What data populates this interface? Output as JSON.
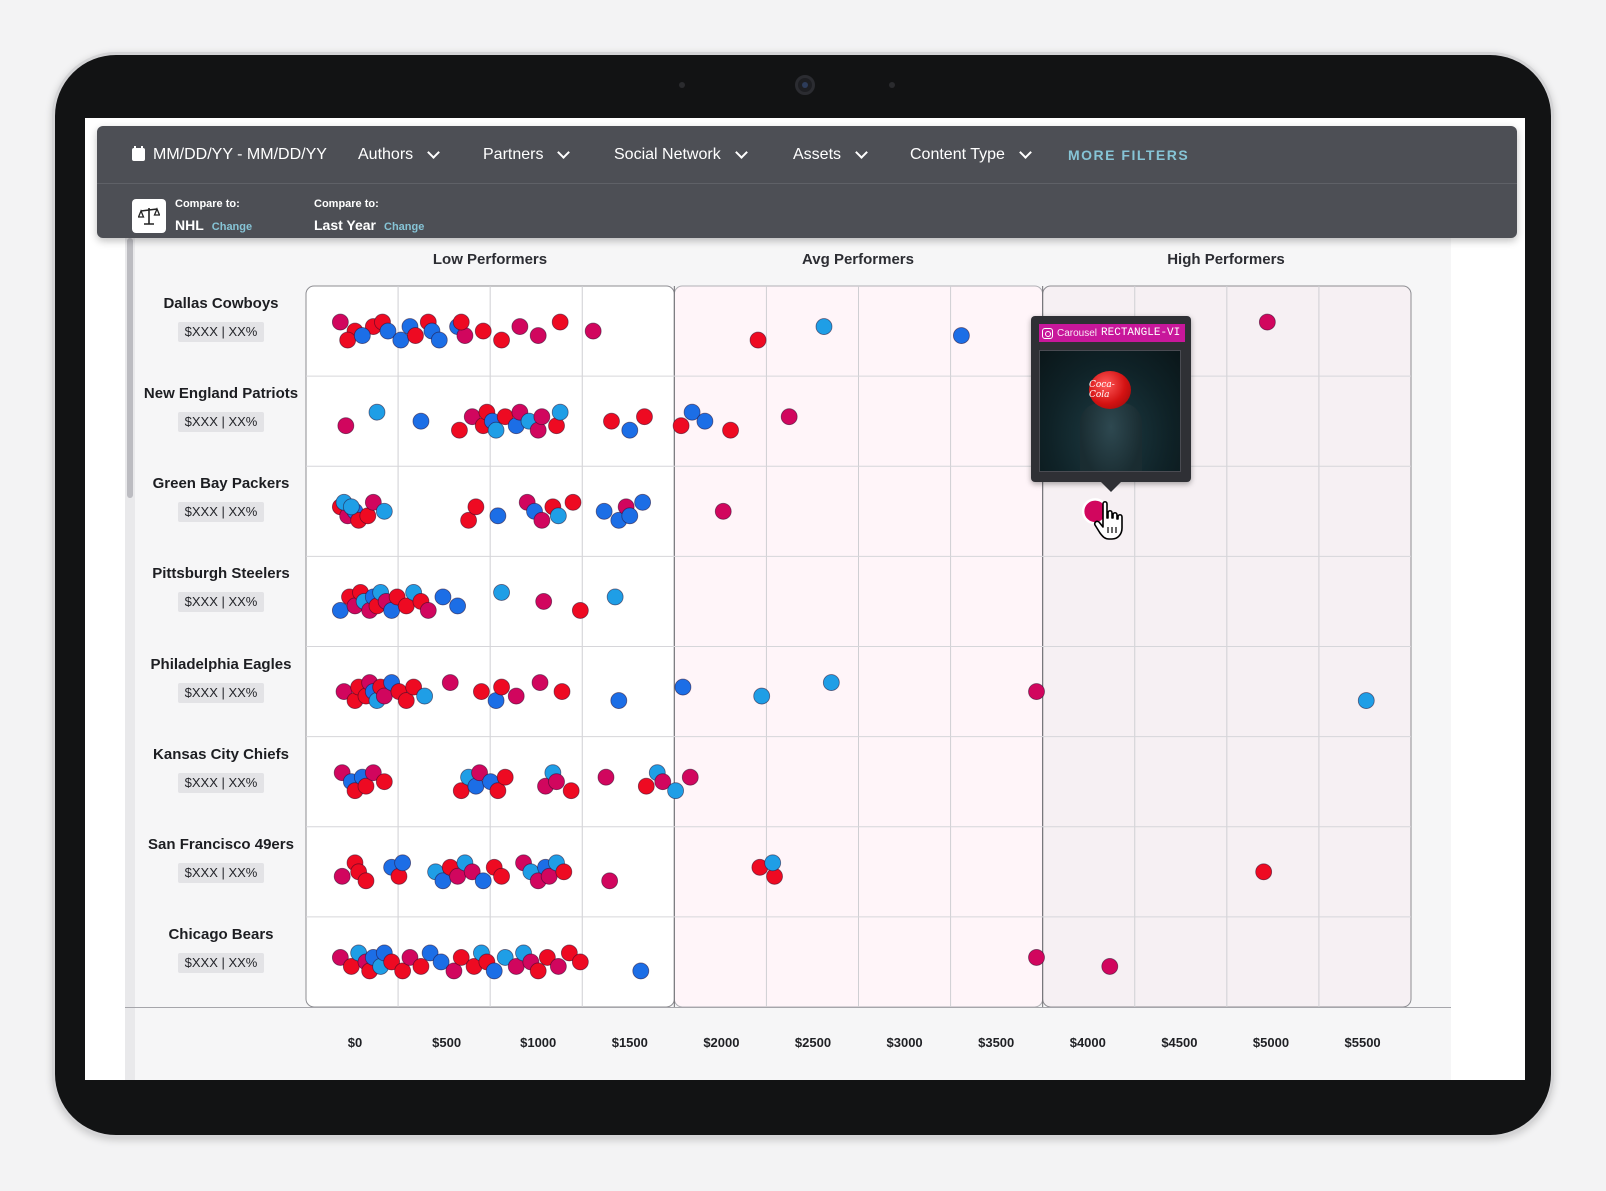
{
  "filters": {
    "date_range": "MM/DD/YY - MM/DD/YY",
    "authors": "Authors",
    "partners": "Partners",
    "social_network": "Social Network",
    "assets": "Assets",
    "content_type": "Content Type",
    "more_filters": "MORE FILTERS"
  },
  "compare": {
    "first": {
      "label": "Compare to:",
      "value": "NHL",
      "change": "Change"
    },
    "second": {
      "label": "Compare to:",
      "value": "Last Year",
      "change": "Change"
    }
  },
  "tooltip": {
    "type": "Carousel",
    "name": "RECTANGLE-VI",
    "image_text": "Coca-Cola",
    "icon": "instagram-icon"
  },
  "colors": {
    "red": "#ee0a22",
    "magenta": "#d1065e",
    "blue": "#1c6ee6",
    "light_blue": "#1f9ee6",
    "accent": "#86c4d6"
  },
  "chart_data": {
    "type": "scatter",
    "groups": [
      "Low Performers",
      "Avg Performers",
      "High Performers"
    ],
    "x_ticks": [
      "$0",
      "$500",
      "$1000",
      "$1500",
      "$2000",
      "$2500",
      "$3000",
      "$3500",
      "$4000",
      "$4500",
      "$5000",
      "$5500"
    ],
    "xlim": [
      -250,
      5750
    ],
    "teams": [
      {
        "name": "Dallas Cowboys",
        "badge": "$XXX | XX%",
        "points": [
          [
            -80,
            "m"
          ],
          [
            0,
            "r"
          ],
          [
            -40,
            "r"
          ],
          [
            100,
            "r"
          ],
          [
            40,
            "b"
          ],
          [
            150,
            "r"
          ],
          [
            180,
            "b"
          ],
          [
            250,
            "b"
          ],
          [
            300,
            "b"
          ],
          [
            330,
            "r"
          ],
          [
            400,
            "r"
          ],
          [
            420,
            "b"
          ],
          [
            460,
            "b"
          ],
          [
            560,
            "b"
          ],
          [
            600,
            "m"
          ],
          [
            580,
            "r"
          ],
          [
            700,
            "r"
          ],
          [
            800,
            "r"
          ],
          [
            900,
            "m"
          ],
          [
            1000,
            "m"
          ],
          [
            1120,
            "r"
          ],
          [
            1300,
            "m"
          ],
          [
            2200,
            "r"
          ],
          [
            2560,
            "lb"
          ],
          [
            3310,
            "b"
          ],
          [
            4980,
            "m"
          ]
        ]
      },
      {
        "name": "New England Patriots",
        "badge": "$XXX | XX%",
        "points": [
          [
            -50,
            "m"
          ],
          [
            120,
            "lb"
          ],
          [
            360,
            "b"
          ],
          [
            570,
            "r"
          ],
          [
            640,
            "m"
          ],
          [
            700,
            "r"
          ],
          [
            720,
            "r"
          ],
          [
            750,
            "b"
          ],
          [
            770,
            "lb"
          ],
          [
            820,
            "r"
          ],
          [
            880,
            "b"
          ],
          [
            900,
            "m"
          ],
          [
            950,
            "lb"
          ],
          [
            1000,
            "m"
          ],
          [
            1020,
            "m"
          ],
          [
            1100,
            "r"
          ],
          [
            1120,
            "lb"
          ],
          [
            1400,
            "r"
          ],
          [
            1500,
            "b"
          ],
          [
            1580,
            "r"
          ],
          [
            1780,
            "r"
          ],
          [
            1840,
            "b"
          ],
          [
            1910,
            "b"
          ],
          [
            2050,
            "r"
          ],
          [
            2370,
            "m"
          ]
        ]
      },
      {
        "name": "Green Bay Packers",
        "badge": "$XXX | XX%",
        "points": [
          [
            -80,
            "r"
          ],
          [
            -40,
            "m"
          ],
          [
            -60,
            "lb"
          ],
          [
            0,
            "b"
          ],
          [
            20,
            "r"
          ],
          [
            -20,
            "lb"
          ],
          [
            70,
            "r"
          ],
          [
            100,
            "m"
          ],
          [
            160,
            "lb"
          ],
          [
            620,
            "r"
          ],
          [
            660,
            "r"
          ],
          [
            780,
            "b"
          ],
          [
            940,
            "m"
          ],
          [
            980,
            "b"
          ],
          [
            1020,
            "m"
          ],
          [
            1080,
            "r"
          ],
          [
            1110,
            "lb"
          ],
          [
            1190,
            "r"
          ],
          [
            1360,
            "b"
          ],
          [
            1440,
            "b"
          ],
          [
            1480,
            "m"
          ],
          [
            1500,
            "b"
          ],
          [
            1570,
            "b"
          ],
          [
            2010,
            "m"
          ],
          [
            4040,
            "m"
          ]
        ]
      },
      {
        "name": "Pittsburgh Steelers",
        "badge": "$XXX | XX%",
        "points": [
          [
            -80,
            "b"
          ],
          [
            -30,
            "r"
          ],
          [
            0,
            "m"
          ],
          [
            30,
            "r"
          ],
          [
            50,
            "lb"
          ],
          [
            80,
            "m"
          ],
          [
            100,
            "b"
          ],
          [
            120,
            "r"
          ],
          [
            140,
            "lb"
          ],
          [
            170,
            "m"
          ],
          [
            200,
            "b"
          ],
          [
            230,
            "r"
          ],
          [
            280,
            "r"
          ],
          [
            320,
            "lb"
          ],
          [
            360,
            "r"
          ],
          [
            400,
            "m"
          ],
          [
            480,
            "b"
          ],
          [
            560,
            "b"
          ],
          [
            800,
            "lb"
          ],
          [
            1030,
            "m"
          ],
          [
            1230,
            "r"
          ],
          [
            1420,
            "lb"
          ]
        ]
      },
      {
        "name": "Philadelphia Eagles",
        "badge": "$XXX | XX%",
        "points": [
          [
            -60,
            "m"
          ],
          [
            0,
            "r"
          ],
          [
            20,
            "r"
          ],
          [
            60,
            "r"
          ],
          [
            80,
            "m"
          ],
          [
            100,
            "b"
          ],
          [
            120,
            "lb"
          ],
          [
            140,
            "r"
          ],
          [
            160,
            "m"
          ],
          [
            200,
            "b"
          ],
          [
            240,
            "r"
          ],
          [
            280,
            "r"
          ],
          [
            320,
            "r"
          ],
          [
            380,
            "lb"
          ],
          [
            520,
            "m"
          ],
          [
            690,
            "r"
          ],
          [
            770,
            "b"
          ],
          [
            800,
            "r"
          ],
          [
            880,
            "m"
          ],
          [
            1010,
            "m"
          ],
          [
            1130,
            "r"
          ],
          [
            1440,
            "b"
          ],
          [
            1790,
            "b"
          ],
          [
            2220,
            "lb"
          ],
          [
            2600,
            "lb"
          ],
          [
            3720,
            "m"
          ],
          [
            5520,
            "lb"
          ]
        ]
      },
      {
        "name": "Kansas City Chiefs",
        "badge": "$XXX | XX%",
        "points": [
          [
            -70,
            "m"
          ],
          [
            -20,
            "b"
          ],
          [
            0,
            "r"
          ],
          [
            40,
            "b"
          ],
          [
            60,
            "r"
          ],
          [
            100,
            "m"
          ],
          [
            160,
            "r"
          ],
          [
            580,
            "r"
          ],
          [
            620,
            "lb"
          ],
          [
            660,
            "b"
          ],
          [
            680,
            "m"
          ],
          [
            740,
            "b"
          ],
          [
            780,
            "r"
          ],
          [
            820,
            "r"
          ],
          [
            1040,
            "m"
          ],
          [
            1080,
            "lb"
          ],
          [
            1100,
            "m"
          ],
          [
            1180,
            "r"
          ],
          [
            1370,
            "m"
          ],
          [
            1590,
            "r"
          ],
          [
            1650,
            "lb"
          ],
          [
            1680,
            "m"
          ],
          [
            1750,
            "lb"
          ],
          [
            1830,
            "m"
          ]
        ]
      },
      {
        "name": "San Francisco 49ers",
        "badge": "$XXX | XX%",
        "points": [
          [
            -70,
            "m"
          ],
          [
            0,
            "r"
          ],
          [
            20,
            "r"
          ],
          [
            60,
            "r"
          ],
          [
            200,
            "b"
          ],
          [
            240,
            "r"
          ],
          [
            260,
            "b"
          ],
          [
            440,
            "lb"
          ],
          [
            480,
            "b"
          ],
          [
            520,
            "r"
          ],
          [
            560,
            "m"
          ],
          [
            600,
            "lb"
          ],
          [
            640,
            "m"
          ],
          [
            700,
            "b"
          ],
          [
            760,
            "r"
          ],
          [
            800,
            "r"
          ],
          [
            920,
            "m"
          ],
          [
            960,
            "lb"
          ],
          [
            1000,
            "m"
          ],
          [
            1040,
            "b"
          ],
          [
            1060,
            "m"
          ],
          [
            1100,
            "lb"
          ],
          [
            1140,
            "r"
          ],
          [
            1390,
            "m"
          ],
          [
            2210,
            "r"
          ],
          [
            2290,
            "r"
          ],
          [
            2280,
            "lb"
          ],
          [
            4960,
            "r"
          ]
        ]
      },
      {
        "name": "Chicago Bears",
        "badge": "$XXX | XX%",
        "points": [
          [
            -80,
            "m"
          ],
          [
            -20,
            "r"
          ],
          [
            20,
            "lb"
          ],
          [
            60,
            "m"
          ],
          [
            80,
            "r"
          ],
          [
            100,
            "b"
          ],
          [
            140,
            "lb"
          ],
          [
            160,
            "b"
          ],
          [
            200,
            "r"
          ],
          [
            260,
            "r"
          ],
          [
            300,
            "m"
          ],
          [
            360,
            "r"
          ],
          [
            410,
            "b"
          ],
          [
            470,
            "b"
          ],
          [
            540,
            "m"
          ],
          [
            580,
            "r"
          ],
          [
            650,
            "r"
          ],
          [
            690,
            "lb"
          ],
          [
            720,
            "r"
          ],
          [
            760,
            "b"
          ],
          [
            820,
            "lb"
          ],
          [
            880,
            "m"
          ],
          [
            920,
            "lb"
          ],
          [
            960,
            "m"
          ],
          [
            1000,
            "r"
          ],
          [
            1050,
            "r"
          ],
          [
            1110,
            "m"
          ],
          [
            1170,
            "r"
          ],
          [
            1230,
            "r"
          ],
          [
            1560,
            "b"
          ],
          [
            3720,
            "m"
          ],
          [
            4120,
            "m"
          ]
        ]
      }
    ],
    "hovered_point": {
      "team": "Green Bay Packers",
      "x": 4040
    }
  }
}
